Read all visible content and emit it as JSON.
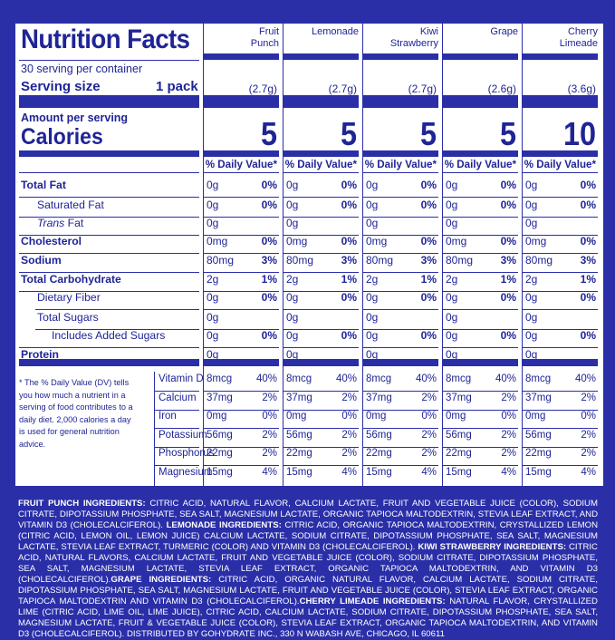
{
  "title": "Nutrition Facts",
  "servings_text": "30 serving per container",
  "serving_size_label": "Serving size",
  "serving_size_value": "1 pack",
  "amount_per_serving": "Amount per serving",
  "calories_label": "Calories",
  "dv_header": "% Daily Value*",
  "footnote": "* The % Daily Value (DV) tells you how much a nutrient in a serving of food contributes to a daily diet. 2,000 calories a day is used for general nutrition advice.",
  "nutrients": [
    "Total Fat",
    "Saturated Fat",
    "Trans Fat",
    "Cholesterol",
    "Sodium",
    "Total Carbohydrate",
    "Dietary Fiber",
    "Total Sugars",
    "Includes Added Sugars",
    "Protein"
  ],
  "trans_prefix": "Trans",
  "trans_suffix": " Fat",
  "vitamins": [
    "Vitamin D",
    "Calcium",
    "Iron",
    "Potassium",
    "Phosphorus",
    "Magnesium"
  ],
  "flavors": [
    {
      "name": "Fruit\nPunch",
      "serving": "(2.7g)",
      "calories": "5",
      "nutrients": [
        [
          "0g",
          "0%"
        ],
        [
          "0g",
          "0%"
        ],
        [
          "0g",
          ""
        ],
        [
          "0mg",
          "0%"
        ],
        [
          "80mg",
          "3%"
        ],
        [
          "2g",
          "1%"
        ],
        [
          "0g",
          "0%"
        ],
        [
          "0g",
          ""
        ],
        [
          "0g",
          "0%"
        ],
        [
          "0g",
          ""
        ]
      ],
      "vitamins": [
        [
          "8mcg",
          "40%"
        ],
        [
          "37mg",
          "2%"
        ],
        [
          "0mg",
          "0%"
        ],
        [
          "56mg",
          "2%"
        ],
        [
          "22mg",
          "2%"
        ],
        [
          "15mg",
          "4%"
        ]
      ]
    },
    {
      "name": "Lemonade",
      "serving": "(2.7g)",
      "calories": "5",
      "nutrients": [
        [
          "0g",
          "0%"
        ],
        [
          "0g",
          "0%"
        ],
        [
          "0g",
          ""
        ],
        [
          "0mg",
          "0%"
        ],
        [
          "80mg",
          "3%"
        ],
        [
          "2g",
          "1%"
        ],
        [
          "0g",
          "0%"
        ],
        [
          "0g",
          ""
        ],
        [
          "0g",
          "0%"
        ],
        [
          "0g",
          ""
        ]
      ],
      "vitamins": [
        [
          "8mcg",
          "40%"
        ],
        [
          "37mg",
          "2%"
        ],
        [
          "0mg",
          "0%"
        ],
        [
          "56mg",
          "2%"
        ],
        [
          "22mg",
          "2%"
        ],
        [
          "15mg",
          "4%"
        ]
      ]
    },
    {
      "name": "Kiwi\nStrawberry",
      "serving": "(2.7g)",
      "calories": "5",
      "nutrients": [
        [
          "0g",
          "0%"
        ],
        [
          "0g",
          "0%"
        ],
        [
          "0g",
          ""
        ],
        [
          "0mg",
          "0%"
        ],
        [
          "80mg",
          "3%"
        ],
        [
          "2g",
          "1%"
        ],
        [
          "0g",
          "0%"
        ],
        [
          "0g",
          ""
        ],
        [
          "0g",
          "0%"
        ],
        [
          "0g",
          ""
        ]
      ],
      "vitamins": [
        [
          "8mcg",
          "40%"
        ],
        [
          "37mg",
          "2%"
        ],
        [
          "0mg",
          "0%"
        ],
        [
          "56mg",
          "2%"
        ],
        [
          "22mg",
          "2%"
        ],
        [
          "15mg",
          "4%"
        ]
      ]
    },
    {
      "name": "Grape",
      "serving": "(2.6g)",
      "calories": "5",
      "nutrients": [
        [
          "0g",
          "0%"
        ],
        [
          "0g",
          "0%"
        ],
        [
          "0g",
          ""
        ],
        [
          "0mg",
          "0%"
        ],
        [
          "80mg",
          "3%"
        ],
        [
          "2g",
          "1%"
        ],
        [
          "0g",
          "0%"
        ],
        [
          "0g",
          ""
        ],
        [
          "0g",
          "0%"
        ],
        [
          "0g",
          ""
        ]
      ],
      "vitamins": [
        [
          "8mcg",
          "40%"
        ],
        [
          "37mg",
          "2%"
        ],
        [
          "0mg",
          "0%"
        ],
        [
          "56mg",
          "2%"
        ],
        [
          "22mg",
          "2%"
        ],
        [
          "15mg",
          "4%"
        ]
      ]
    },
    {
      "name": "Cherry\nLimeade",
      "serving": "(3.6g)",
      "calories": "10",
      "nutrients": [
        [
          "0g",
          "0%"
        ],
        [
          "0g",
          "0%"
        ],
        [
          "0g",
          ""
        ],
        [
          "0mg",
          "0%"
        ],
        [
          "80mg",
          "3%"
        ],
        [
          "2g",
          "1%"
        ],
        [
          "0g",
          "0%"
        ],
        [
          "0g",
          ""
        ],
        [
          "0g",
          "0%"
        ],
        [
          "0g",
          ""
        ]
      ],
      "vitamins": [
        [
          "8mcg",
          "40%"
        ],
        [
          "37mg",
          "2%"
        ],
        [
          "0mg",
          "0%"
        ],
        [
          "56mg",
          "2%"
        ],
        [
          "22mg",
          "2%"
        ],
        [
          "15mg",
          "4%"
        ]
      ]
    }
  ],
  "ingredients": [
    {
      "label": "FRUIT PUNCH INGREDIENTS:",
      "text": " CITRIC ACID, NATURAL FLAVOR, CALCIUM LACTATE, FRUIT AND VEGETABLE JUICE (COLOR), SODIUM CITRATE, DIPOTASSIUM PHOSPHATE, SEA SALT, MAGNESIUM LACTATE, ORGANIC TAPIOCA MALTODEXTRIN, STEVIA LEAF EXTRACT, AND VITAMIN D3 (CHOLECALCIFEROL). "
    },
    {
      "label": "LEMONADE INGREDIENTS:",
      "text": " CITRIC ACID, ORGANIC TAPIOCA MALTODEXTRIN, CRYSTALLIZED LEMON (CITRIC ACID, LEMON OIL, LEMON JUICE) CALCIUM LACTATE, SODIUM CITRATE, DIPOTASSIUM PHOSPHATE, SEA SALT, MAGNESIUM LACTATE, STEVIA LEAF EXTRACT, TURMERIC (COLOR) AND VITAMIN D3 (CHOLECALCIFEROL). "
    },
    {
      "label": "KIWI STRAWBERRY INGREDIENTS:",
      "text": " CITRIC ACID, NATURAL FLAVORS, CALCIUM LACTATE, FRUIT AND VEGETABLE JUICE (COLOR), SODIUM CITRATE, DIPOTASSIUM PHOSPHATE, SEA SALT, MAGNESIUM LACTATE, STEVIA LEAF EXTRACT, ORGANIC TAPIOCA MALTODEXTRIN, AND VITAMIN D3 (CHOLECALCIFEROL)."
    },
    {
      "label": "GRAPE INGREDIENTS:",
      "text": " CITRIC ACID, ORGANIC NATURAL FLAVOR, CALCIUM LACTATE, SODIUM CITRATE, DIPOTASSIUM PHOSPHATE, SEA SALT, MAGNESIUM LACTATE, FRUIT AND VEGETABLE JUICE (COLOR), STEVIA LEAF EXTRACT, ORGANIC TAPIOCA MALTODEXTRIN AND VITAMIN D3 (CHOLECALCIFEROL)."
    },
    {
      "label": "CHERRY LIMEADE INGREDIENTS:",
      "text": " NATURAL FLAVOR, CRYSTALLIZED LIME (CITRIC ACID, LIME OIL, LIME JUICE), CITRIC ACID, CALCIUM LACTATE, SODIUM CITRATE, DIPOTASSIUM PHOSPHATE, SEA SALT, MAGNESIUM LACTATE, FRUIT & VEGETABLE JUICE (COLOR), STEVIA LEAF EXTRACT, ORGANIC TAPIOCA MALTODEXTRIN, AND VITAMIN D3 (CHOLECALCIFEROL). DISTRIBUTED BY GOHYDRATE INC., 330 N WABASH AVE, CHICAGO, IL 60611"
    }
  ],
  "colors": {
    "brand_blue": "#2a2fa8",
    "panel_white": "#ffffff"
  }
}
